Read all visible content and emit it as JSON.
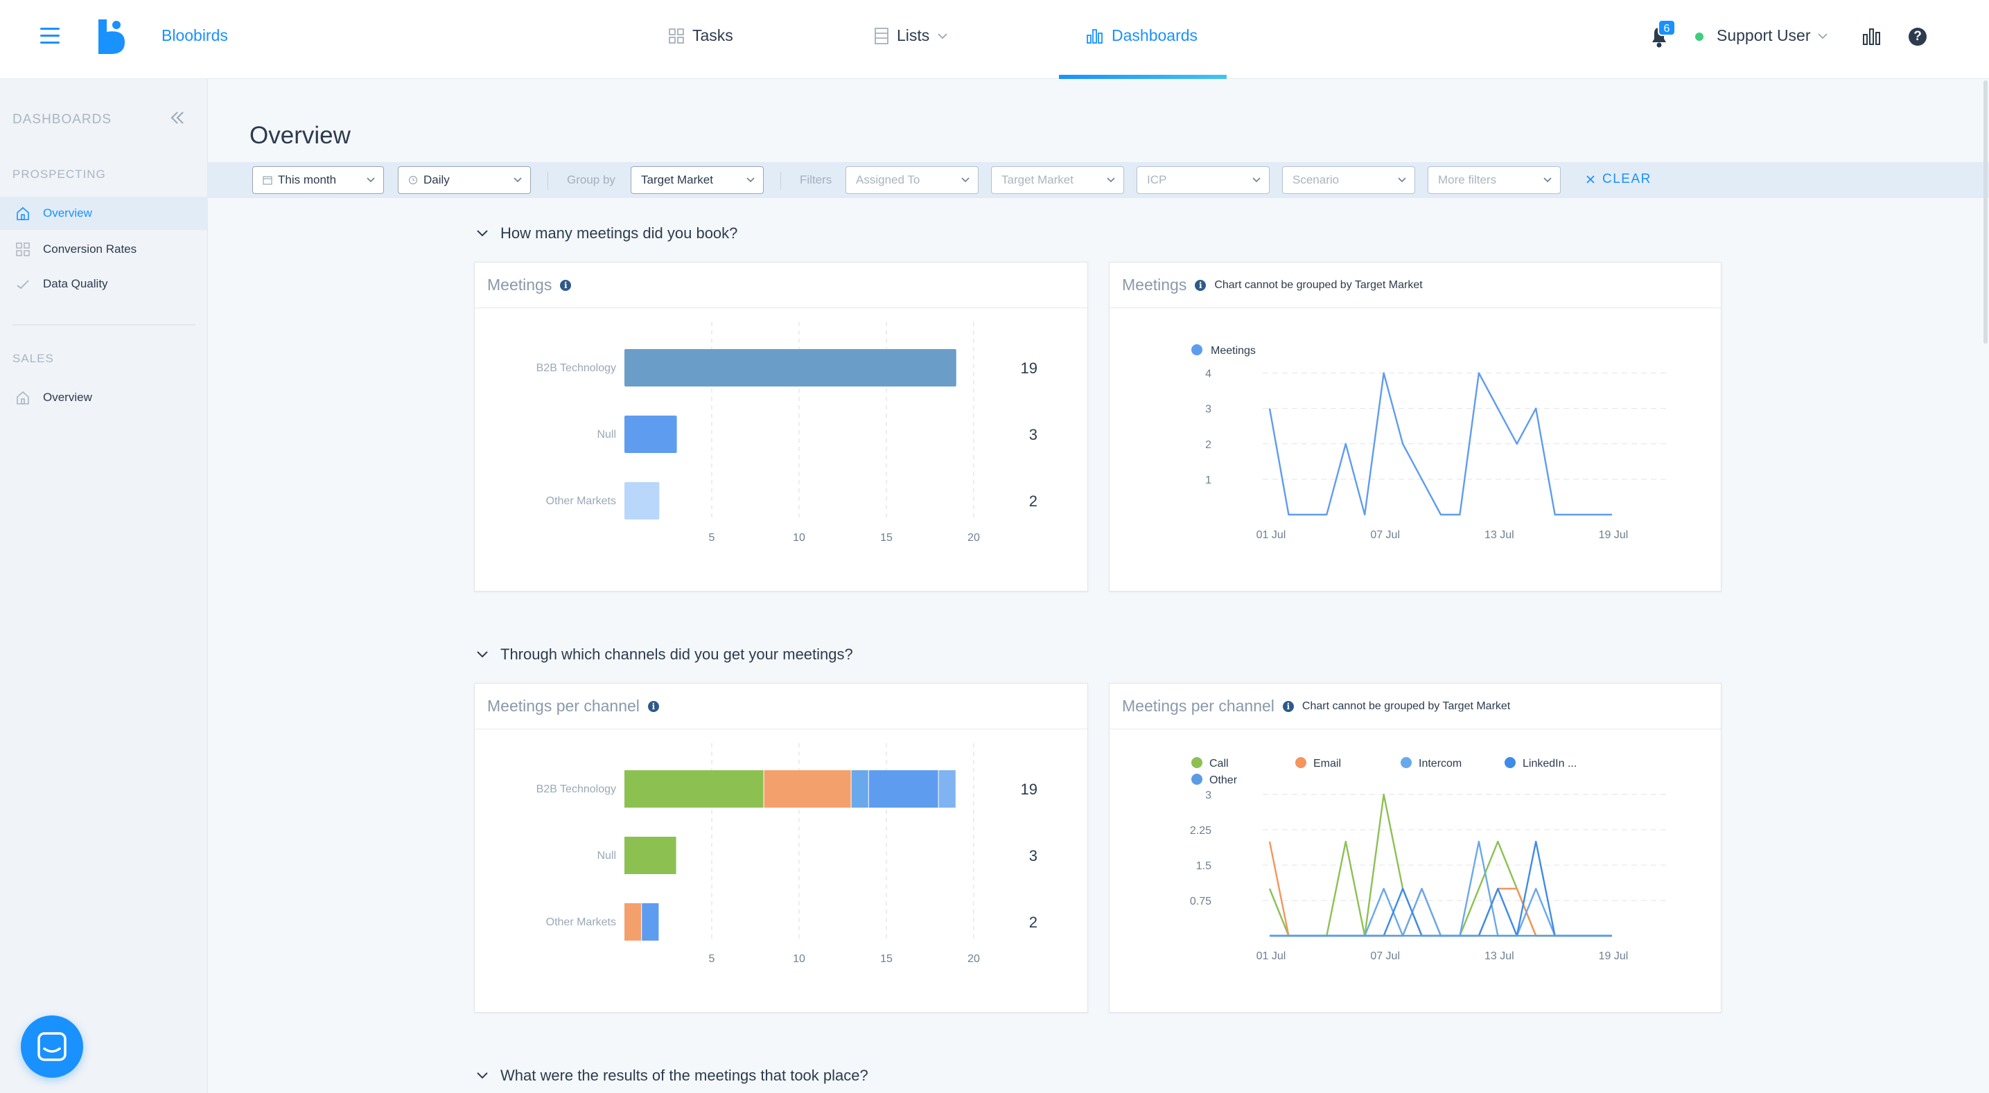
{
  "nav": {
    "brand": "Bloobirds",
    "tabs": [
      {
        "label": "Tasks",
        "icon": "grid-icon"
      },
      {
        "label": "Lists",
        "icon": "list-icon"
      },
      {
        "label": "Dashboards",
        "icon": "bar-chart-icon",
        "active": true
      }
    ],
    "notifications": "6",
    "user": "Support User",
    "status_color": "#3ecd7e"
  },
  "sidebar": {
    "heading": "DASHBOARDS",
    "groups": [
      {
        "heading": "PROSPECTING",
        "items": [
          "Overview",
          "Conversion Rates",
          "Data Quality"
        ]
      },
      {
        "heading": "SALES",
        "items": [
          "Overview"
        ]
      }
    ],
    "active_item": "Overview"
  },
  "page": {
    "title": "Overview",
    "filters": {
      "date_range": "This month",
      "granularity": "Daily",
      "group_by_label": "Group by",
      "group_by": "Target Market",
      "filters_label": "Filters",
      "assigned_to": "Assigned To",
      "target_market": "Target Market",
      "icp": "ICP",
      "scenario": "Scenario",
      "more_filters": "More filters",
      "clear": "CLEAR"
    },
    "sections": [
      "How many meetings did you book?",
      "Through which channels did you get your meetings?",
      "What were the results of the meetings that took place?"
    ]
  },
  "cards": {
    "meetings_bar": {
      "title": "Meetings"
    },
    "meetings_line": {
      "title": "Meetings",
      "note": "Chart cannot be grouped by Target Market"
    },
    "channel_bar": {
      "title": "Meetings per channel"
    },
    "channel_line": {
      "title": "Meetings per channel",
      "note": "Chart cannot be grouped by Target Market"
    }
  },
  "colors": {
    "accent": "#1991ff",
    "call": "#8cc152",
    "email": "#f4955c",
    "intercom": "#6aa8ec",
    "linkedin": "#3e8be8",
    "other": "#5a9be6"
  },
  "chart_data": [
    {
      "type": "bar",
      "orientation": "horizontal",
      "categories": [
        "B2B Technology",
        "Null",
        "Other Markets"
      ],
      "values": [
        19,
        3,
        2
      ],
      "xticks": [
        5,
        10,
        15,
        20
      ],
      "xlim": [
        0,
        20
      ],
      "colors": [
        "#6a9ec9",
        "#5e9cf0",
        "#b9d7fb"
      ]
    },
    {
      "type": "line",
      "series": [
        {
          "name": "Meetings",
          "color": "#5e9cf0",
          "values": [
            3,
            0,
            0,
            0,
            2,
            0,
            4,
            2,
            1,
            0,
            0,
            4,
            3,
            2,
            3,
            0,
            0,
            0,
            0
          ]
        }
      ],
      "x_labels": [
        {
          "index": 0,
          "label": "01 Jul"
        },
        {
          "index": 6,
          "label": "07 Jul"
        },
        {
          "index": 12,
          "label": "13 Jul"
        },
        {
          "index": 18,
          "label": "19 Jul"
        }
      ],
      "yticks": [
        1,
        2,
        3,
        4
      ],
      "ylim": [
        0,
        4.5
      ]
    },
    {
      "type": "bar",
      "orientation": "horizontal",
      "stacked": true,
      "categories": [
        "B2B Technology",
        "Null",
        "Other Markets"
      ],
      "totals": [
        19,
        3,
        2
      ],
      "series": [
        {
          "name": "Call",
          "color": "#8cc152",
          "values": [
            8,
            3,
            0
          ]
        },
        {
          "name": "Email",
          "color": "#f4a06d",
          "values": [
            5,
            0,
            1
          ]
        },
        {
          "name": "Intercom",
          "color": "#6aa8ec",
          "values": [
            1,
            0,
            0
          ]
        },
        {
          "name": "LinkedIn",
          "color": "#5e9cf0",
          "values": [
            4,
            0,
            1
          ]
        },
        {
          "name": "Other",
          "color": "#7fb3f2",
          "values": [
            1,
            0,
            0
          ]
        }
      ],
      "xticks": [
        5,
        10,
        15,
        20
      ],
      "xlim": [
        0,
        20
      ]
    },
    {
      "type": "line",
      "legend": [
        "Call",
        "Email",
        "Intercom",
        "LinkedIn ...",
        "Other"
      ],
      "series": [
        {
          "name": "Call",
          "color": "#8cc152",
          "values": [
            1,
            0,
            0,
            0,
            2,
            0,
            3,
            1,
            0,
            0,
            0,
            1,
            2,
            1,
            0,
            0,
            0,
            0,
            0
          ]
        },
        {
          "name": "Email",
          "color": "#f4955c",
          "values": [
            2,
            0,
            0,
            0,
            0,
            0,
            0,
            0,
            1,
            0,
            0,
            0,
            1,
            1,
            0,
            0,
            0,
            0,
            0
          ]
        },
        {
          "name": "Intercom",
          "color": "#6aa8ec",
          "values": [
            0,
            0,
            0,
            0,
            0,
            0,
            1,
            0,
            1,
            0,
            0,
            2,
            0,
            0,
            1,
            0,
            0,
            0,
            0
          ]
        },
        {
          "name": "LinkedIn ...",
          "color": "#3e8be8",
          "values": [
            0,
            0,
            0,
            0,
            0,
            0,
            0,
            1,
            0,
            0,
            0,
            0,
            1,
            0,
            2,
            0,
            0,
            0,
            0
          ]
        },
        {
          "name": "Other",
          "color": "#5a9be6",
          "values": [
            0,
            0,
            0,
            0,
            0,
            0,
            0,
            0,
            0,
            0,
            0,
            0,
            0,
            0,
            0,
            0,
            0,
            0,
            0
          ]
        }
      ],
      "x_labels": [
        {
          "index": 0,
          "label": "01 Jul"
        },
        {
          "index": 6,
          "label": "07 Jul"
        },
        {
          "index": 12,
          "label": "13 Jul"
        },
        {
          "index": 18,
          "label": "19 Jul"
        }
      ],
      "yticks": [
        0.75,
        1.5,
        2.25,
        3
      ],
      "ylim": [
        0,
        3
      ]
    }
  ]
}
